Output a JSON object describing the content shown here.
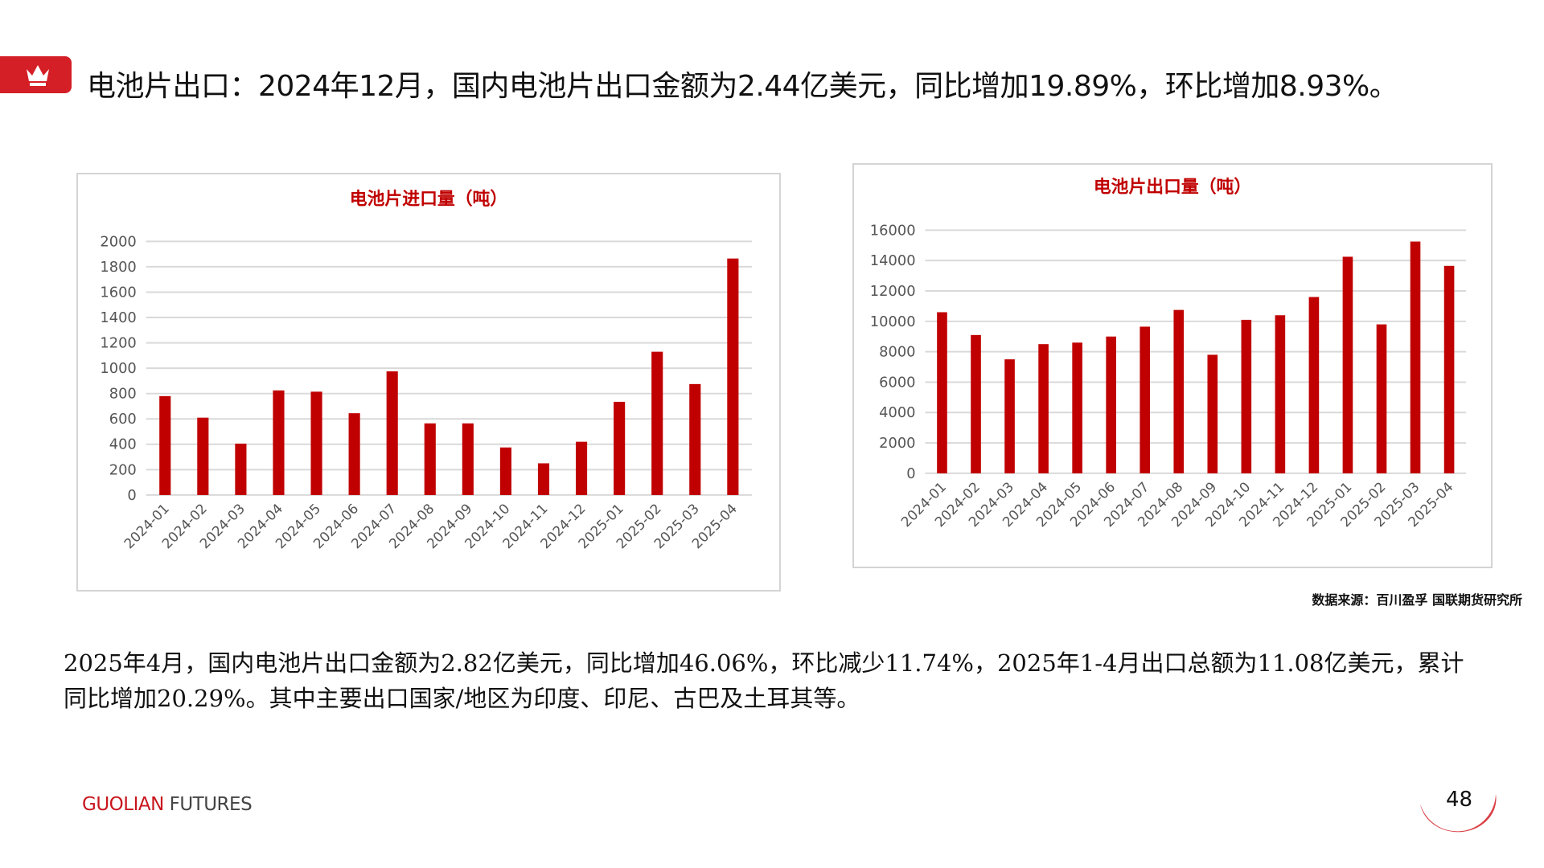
{
  "header": {
    "icon": "crown-icon",
    "title": "电池片出口：2024年12月，国内电池片出口金额为2.44亿美元，同比增加19.89%，环比增加8.93%。"
  },
  "chart_data": [
    {
      "type": "bar",
      "title": "电池片进口量（吨）",
      "categories": [
        "2024-01",
        "2024-02",
        "2024-03",
        "2024-04",
        "2024-05",
        "2024-06",
        "2024-07",
        "2024-08",
        "2024-09",
        "2024-10",
        "2024-11",
        "2024-12",
        "2025-01",
        "2025-02",
        "2025-03",
        "2025-04"
      ],
      "values": [
        780,
        610,
        405,
        825,
        815,
        645,
        975,
        565,
        565,
        375,
        250,
        420,
        735,
        1130,
        875,
        1865
      ],
      "ylim": [
        0,
        2000
      ],
      "yticks": [
        "0",
        "200",
        "400",
        "600",
        "800",
        "1000",
        "1200",
        "1400",
        "1600",
        "1800",
        "2000"
      ],
      "grid": true,
      "color": "#c00000"
    },
    {
      "type": "bar",
      "title": "电池片出口量（吨）",
      "categories": [
        "2024-01",
        "2024-02",
        "2024-03",
        "2024-04",
        "2024-05",
        "2024-06",
        "2024-07",
        "2024-08",
        "2024-09",
        "2024-10",
        "2024-11",
        "2024-12",
        "2025-01",
        "2025-02",
        "2025-03",
        "2025-04"
      ],
      "values": [
        10600,
        9100,
        7500,
        8500,
        8600,
        9000,
        9650,
        10750,
        7800,
        10100,
        10400,
        11600,
        14250,
        9800,
        15250,
        13650
      ],
      "ylim": [
        0,
        16000
      ],
      "yticks": [
        "0",
        "2000",
        "4000",
        "6000",
        "8000",
        "10000",
        "12000",
        "14000",
        "16000"
      ],
      "grid": true,
      "color": "#c00000"
    }
  ],
  "source": "数据来源：百川盈孚  国联期货研究所",
  "paragraph": "2025年4月，国内电池片出口金额为2.82亿美元，同比增加46.06%，环比减少11.74%，2025年1-4月出口总额为11.08亿美元，累计同比增加20.29%。其中主要出口国家/地区为印度、印尼、古巴及土耳其等。",
  "footer": {
    "brand_red": "GUOLIAN",
    "brand_gray": " FUTURES",
    "page": "48"
  }
}
